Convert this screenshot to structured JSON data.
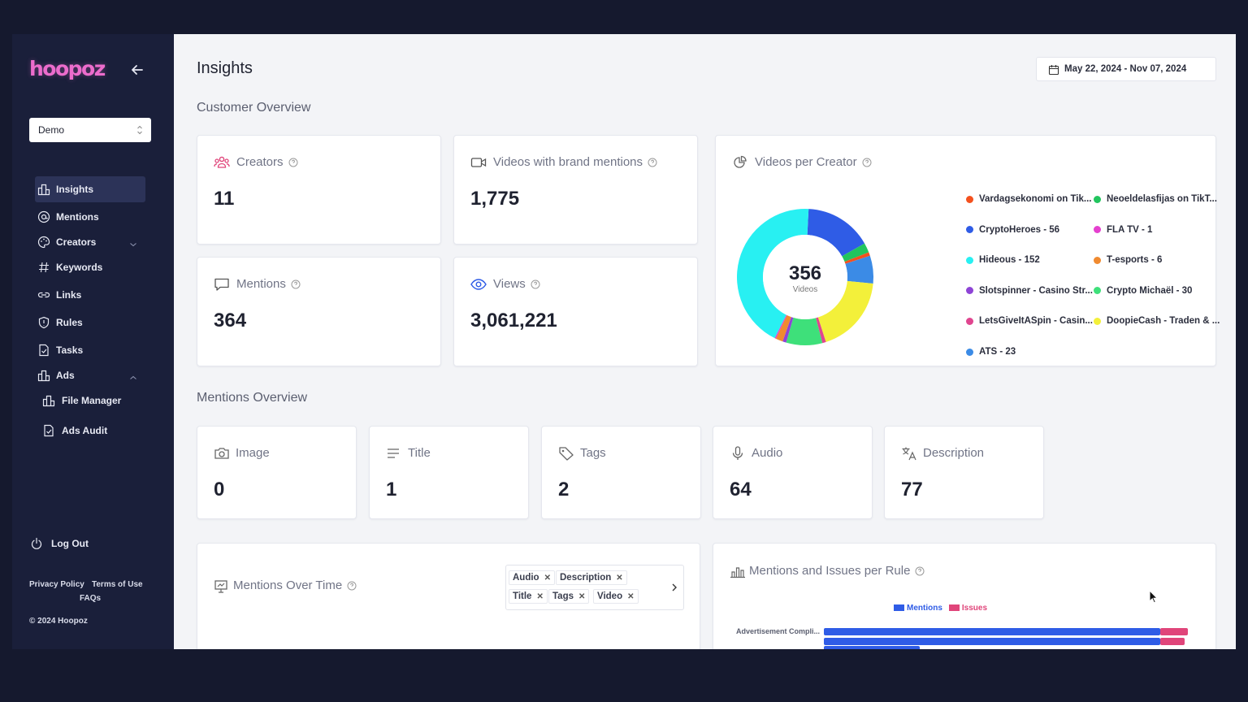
{
  "app": {
    "logo": "hoopoz",
    "org_select": "Demo",
    "nav": [
      {
        "label": "Insights",
        "icon": "bar-chart-icon",
        "active": true
      },
      {
        "label": "Mentions",
        "icon": "at-sign-icon"
      },
      {
        "label": "Creators",
        "icon": "palette-icon",
        "caret": "down"
      },
      {
        "label": "Keywords",
        "icon": "hash-icon"
      },
      {
        "label": "Links",
        "icon": "link-icon"
      },
      {
        "label": "Rules",
        "icon": "shield-icon"
      },
      {
        "label": "Tasks",
        "icon": "task-file-icon"
      },
      {
        "label": "Ads",
        "icon": "bar-chart-icon",
        "caret": "up"
      },
      {
        "label": "File Manager",
        "icon": "bar-chart-icon",
        "sub": true
      },
      {
        "label": "Ads Audit",
        "icon": "task-file-icon",
        "sub": true
      }
    ],
    "logout": "Log Out",
    "footer": {
      "privacy": "Privacy Policy",
      "terms": "Terms of Use",
      "faqs": "FAQs",
      "copyright": "© 2024 Hoopoz"
    }
  },
  "page": {
    "title": "Insights",
    "date_range": "May 22, 2024 - Nov 07, 2024"
  },
  "customer_overview": {
    "title": "Customer Overview",
    "cards": [
      {
        "label": "Creators",
        "value": "11",
        "icon": "users-icon"
      },
      {
        "label": "Videos with brand mentions",
        "value": "1,775",
        "icon": "video-icon"
      },
      {
        "label": "Mentions",
        "value": "364",
        "icon": "chat-icon"
      },
      {
        "label": "Views",
        "value": "3,061,221",
        "icon": "eye-icon"
      }
    ],
    "videos_per_creator": {
      "label": "Videos per Creator",
      "total": "356",
      "total_label": "Videos",
      "legend": [
        {
          "label": "Vardagsekonomi on Tik...",
          "color": "#f4511e"
        },
        {
          "label": "Neoeldelasfijas on TikT...",
          "color": "#22c55e"
        },
        {
          "label": "CryptoHeroes - 56",
          "color": "#2f5ce6"
        },
        {
          "label": "FLA TV - 1",
          "color": "#e540cf"
        },
        {
          "label": "Hideous - 152",
          "color": "#28f0f2"
        },
        {
          "label": "T-esports - 6",
          "color": "#f08a30"
        },
        {
          "label": "Slotspinner - Casino Str...",
          "color": "#8e44d6"
        },
        {
          "label": "Crypto Michaël - 30",
          "color": "#3ee07a"
        },
        {
          "label": "LetsGiveItASpin - Casin...",
          "color": "#e0458f"
        },
        {
          "label": "DoopieCash - Traden & ...",
          "color": "#f3f03a"
        },
        {
          "label": "ATS - 23",
          "color": "#3b8be6"
        }
      ]
    }
  },
  "chart_data": {
    "type": "pie",
    "title": "Videos per Creator",
    "slices": [
      {
        "name": "CryptoHeroes",
        "value": 56,
        "color": "#2f5ce6"
      },
      {
        "name": "Neoeldelasfijas on TikT...",
        "value": 8,
        "color": "#22c55e"
      },
      {
        "name": "Vardagsekonomi on Tik...",
        "value": 3,
        "color": "#f4511e"
      },
      {
        "name": "ATS",
        "value": 23,
        "color": "#3b8be6"
      },
      {
        "name": "DoopieCash - Traden & ...",
        "value": 65,
        "color": "#f3f03a"
      },
      {
        "name": "LetsGiveItASpin - Casin...",
        "value": 3,
        "color": "#e0458f"
      },
      {
        "name": "Crypto Michaël",
        "value": 30,
        "color": "#3ee07a"
      },
      {
        "name": "Slotspinner - Casino Str...",
        "value": 3,
        "color": "#8e44d6"
      },
      {
        "name": "T-esports",
        "value": 6,
        "color": "#f08a30"
      },
      {
        "name": "FLA TV",
        "value": 1,
        "color": "#e540cf"
      },
      {
        "name": "Hideous",
        "value": 152,
        "color": "#28f0f2"
      }
    ]
  },
  "mentions_overview": {
    "title": "Mentions Overview",
    "cards": [
      {
        "label": "Image",
        "value": "0",
        "icon": "camera-icon"
      },
      {
        "label": "Title",
        "value": "1",
        "icon": "lines-icon"
      },
      {
        "label": "Tags",
        "value": "2",
        "icon": "tag-icon"
      },
      {
        "label": "Audio",
        "value": "64",
        "icon": "mic-icon"
      },
      {
        "label": "Description",
        "value": "77",
        "icon": "translate-icon"
      }
    ]
  },
  "mentions_over_time": {
    "label": "Mentions Over Time",
    "chips": [
      "Audio",
      "Description",
      "Title",
      "Tags",
      "Video"
    ]
  },
  "rules_chart": {
    "label": "Mentions and Issues per Rule",
    "legend": [
      {
        "name": "Mentions",
        "color": "#2f5ce6"
      },
      {
        "name": "Issues",
        "color": "#e0457a"
      }
    ],
    "rows": [
      {
        "rule": "Advertisement Compli...",
        "mentions": 98,
        "issues": 8
      },
      {
        "rule": "",
        "mentions": 98,
        "issues": 7
      },
      {
        "rule": "",
        "mentions": 28,
        "issues": 0
      }
    ],
    "scale_max": 106
  }
}
